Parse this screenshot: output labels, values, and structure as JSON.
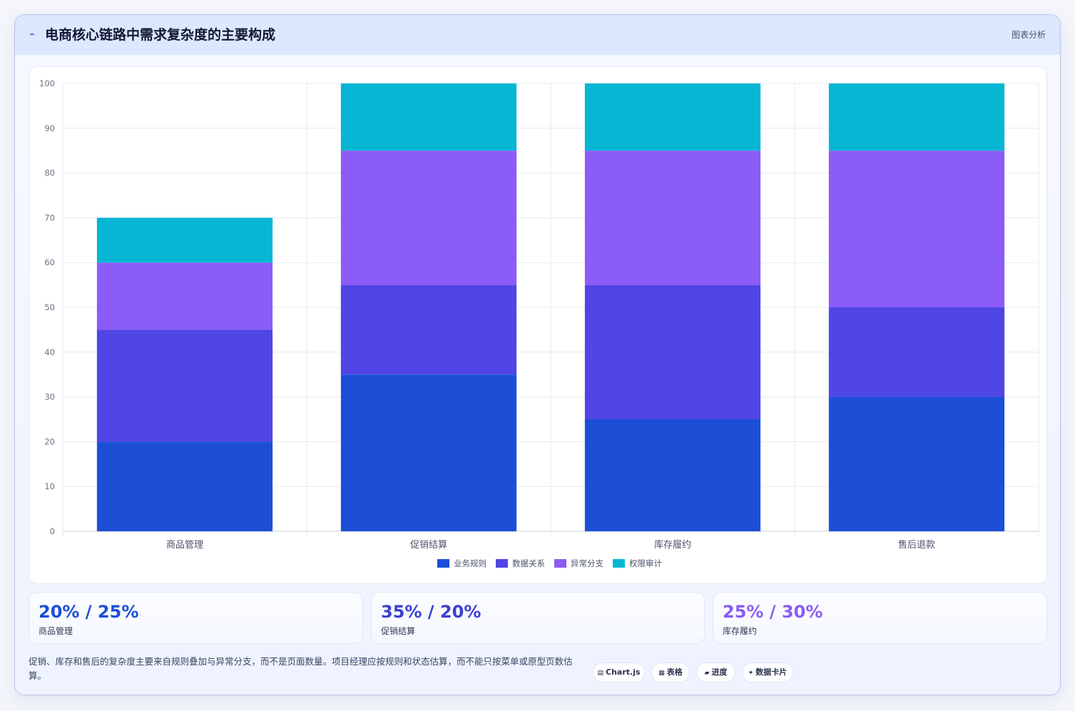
{
  "header": {
    "title": "电商核心链路中需求复杂度的主要构成",
    "badge": "图表分析",
    "icon": "sparkline-icon"
  },
  "chart_data": {
    "type": "bar",
    "stacked": true,
    "categories": [
      "商品管理",
      "促销结算",
      "库存履约",
      "售后退款"
    ],
    "series": [
      {
        "name": "业务规则",
        "color": "#1c4fd6",
        "values": [
          20,
          35,
          25,
          30
        ]
      },
      {
        "name": "数据关系",
        "color": "#4f46e5",
        "values": [
          25,
          20,
          30,
          20
        ]
      },
      {
        "name": "异常分支",
        "color": "#8b5cf6",
        "values": [
          15,
          30,
          30,
          35
        ]
      },
      {
        "name": "权限审计",
        "color": "#06b6d4",
        "values": [
          10,
          15,
          15,
          15
        ]
      }
    ],
    "ylim": [
      0,
      100
    ],
    "yticks": [
      0,
      10,
      20,
      30,
      40,
      50,
      60,
      70,
      80,
      90,
      100
    ],
    "grid": true,
    "legend": "bottom"
  },
  "stats": [
    {
      "value": "20% / 25%",
      "label": "商品管理",
      "color": "#1c4fd6"
    },
    {
      "value": "35% / 20%",
      "label": "促销结算",
      "color": "#3b3fd0"
    },
    {
      "value": "25% / 30%",
      "label": "库存履约",
      "color": "#8b5cf6"
    }
  ],
  "footnote": "促销、库存和售后的复杂度主要来自规则叠加与异常分支，而不是页面数量。项目经理应按规则和状态估算，而不能只按菜单或原型页数估算。",
  "tags": [
    {
      "icon": "chart-icon",
      "glyph": "▤",
      "label": "Chart.js"
    },
    {
      "icon": "table-icon",
      "glyph": "▦",
      "label": "表格"
    },
    {
      "icon": "progress-icon",
      "glyph": "▰",
      "label": "进度"
    },
    {
      "icon": "card-icon",
      "glyph": "✦",
      "label": "数据卡片"
    }
  ]
}
